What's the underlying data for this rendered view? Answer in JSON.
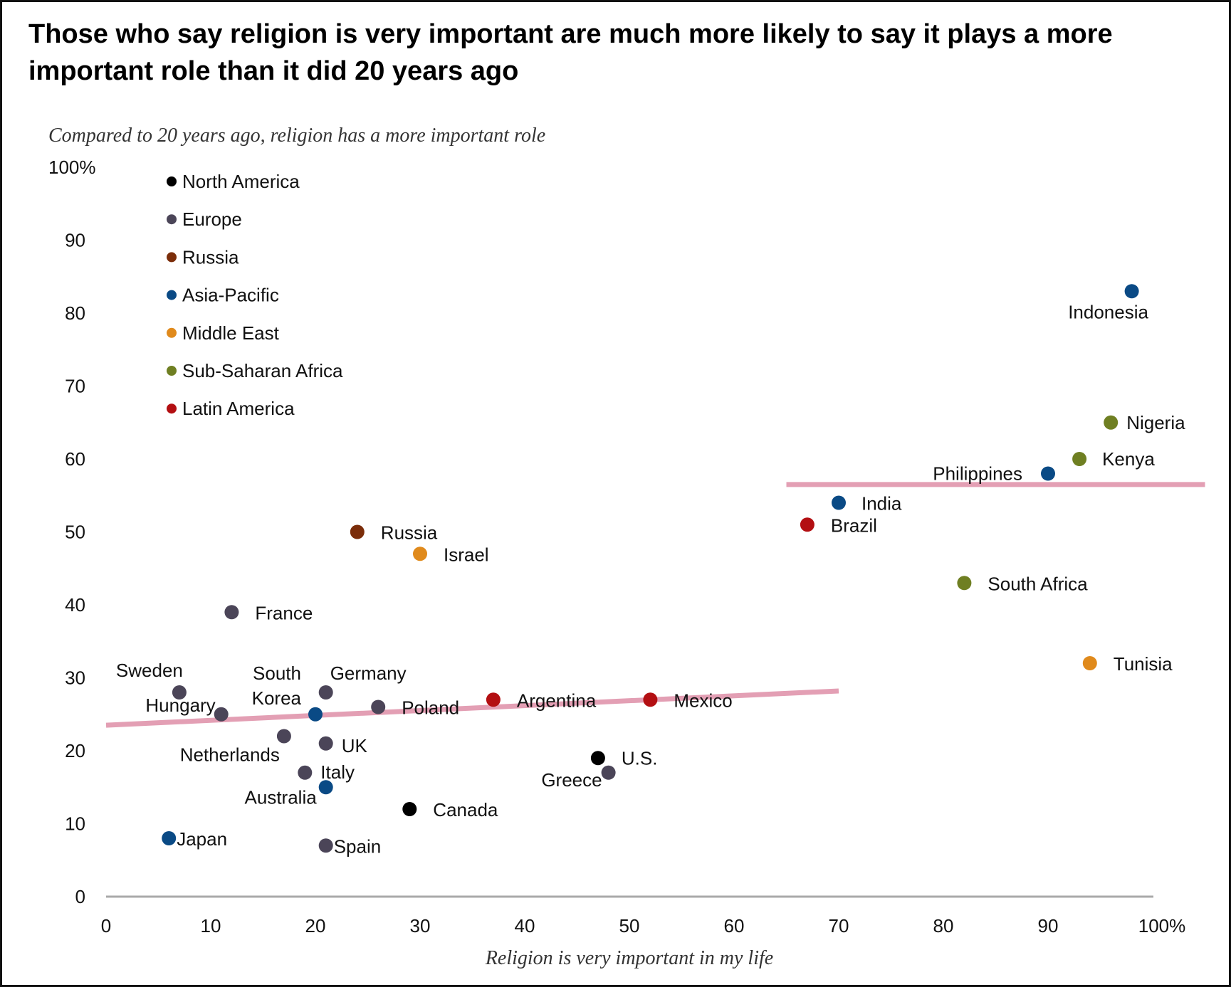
{
  "chart_data": {
    "type": "scatter",
    "title": "Those who say religion is very important are much more likely to say it plays a more important role than it did 20 years ago",
    "ylabel": "Compared to 20 years ago, religion has a more important role",
    "xlabel": "Religion is very important in my life",
    "xlim": [
      0,
      100
    ],
    "ylim": [
      0,
      100
    ],
    "x_ticks": [
      "0",
      "10",
      "20",
      "30",
      "40",
      "50",
      "60",
      "70",
      "80",
      "90",
      "100%"
    ],
    "y_ticks": [
      "0",
      "10",
      "20",
      "30",
      "40",
      "50",
      "60",
      "70",
      "80",
      "90",
      "100%"
    ],
    "grid": false,
    "legend_placement": "top-left",
    "legend": [
      {
        "name": "North America",
        "color": "#000000"
      },
      {
        "name": "Europe",
        "color": "#4b4558"
      },
      {
        "name": "Russia",
        "color": "#7b2d0a"
      },
      {
        "name": "Asia-Pacific",
        "color": "#0a4a85"
      },
      {
        "name": "Middle East",
        "color": "#e08a1c"
      },
      {
        "name": "Sub-Saharan Africa",
        "color": "#6f7f22"
      },
      {
        "name": "Latin America",
        "color": "#b30f12"
      }
    ],
    "points": [
      {
        "label": "Indonesia",
        "region": "Asia-Pacific",
        "x": 98,
        "y": 83
      },
      {
        "label": "Nigeria",
        "region": "Sub-Saharan Africa",
        "x": 96,
        "y": 65
      },
      {
        "label": "Kenya",
        "region": "Sub-Saharan Africa",
        "x": 93,
        "y": 60
      },
      {
        "label": "Philippines",
        "region": "Asia-Pacific",
        "x": 90,
        "y": 58
      },
      {
        "label": "India",
        "region": "Asia-Pacific",
        "x": 70,
        "y": 54
      },
      {
        "label": "Brazil",
        "region": "Latin America",
        "x": 67,
        "y": 51
      },
      {
        "label": "South Africa",
        "region": "Sub-Saharan Africa",
        "x": 82,
        "y": 43
      },
      {
        "label": "Tunisia",
        "region": "Middle East",
        "x": 94,
        "y": 32
      },
      {
        "label": "Russia",
        "region": "Russia",
        "x": 24,
        "y": 50
      },
      {
        "label": "Israel",
        "region": "Middle East",
        "x": 30,
        "y": 47
      },
      {
        "label": "France",
        "region": "Europe",
        "x": 12,
        "y": 39
      },
      {
        "label": "Sweden",
        "region": "Europe",
        "x": 7,
        "y": 28
      },
      {
        "label": "Hungary",
        "region": "Europe",
        "x": 11,
        "y": 25
      },
      {
        "label": "South Korea",
        "region": "Asia-Pacific",
        "x": 20,
        "y": 25
      },
      {
        "label": "Germany",
        "region": "Europe",
        "x": 21,
        "y": 28
      },
      {
        "label": "Poland",
        "region": "Europe",
        "x": 26,
        "y": 26
      },
      {
        "label": "Argentina",
        "region": "Latin America",
        "x": 37,
        "y": 27
      },
      {
        "label": "Mexico",
        "region": "Latin America",
        "x": 52,
        "y": 27
      },
      {
        "label": "Netherlands",
        "region": "Europe",
        "x": 17,
        "y": 22
      },
      {
        "label": "UK",
        "region": "Europe",
        "x": 21,
        "y": 21
      },
      {
        "label": "Italy",
        "region": "Europe",
        "x": 19,
        "y": 17
      },
      {
        "label": "Australia",
        "region": "Asia-Pacific",
        "x": 21,
        "y": 15
      },
      {
        "label": "U.S.",
        "region": "North America",
        "x": 47,
        "y": 19
      },
      {
        "label": "Greece",
        "region": "Europe",
        "x": 48,
        "y": 17
      },
      {
        "label": "Canada",
        "region": "North America",
        "x": 29,
        "y": 12
      },
      {
        "label": "Japan",
        "region": "Asia-Pacific",
        "x": 6,
        "y": 8
      },
      {
        "label": "Spain",
        "region": "Europe",
        "x": 21,
        "y": 7
      }
    ],
    "trend_lines": [
      {
        "x": [
          0,
          70
        ],
        "y": [
          23.5,
          28.2
        ],
        "color": "#e29ab0"
      },
      {
        "x": [
          65,
          105
        ],
        "y": [
          56.5,
          56.5
        ],
        "color": "#e29ab0"
      }
    ]
  }
}
